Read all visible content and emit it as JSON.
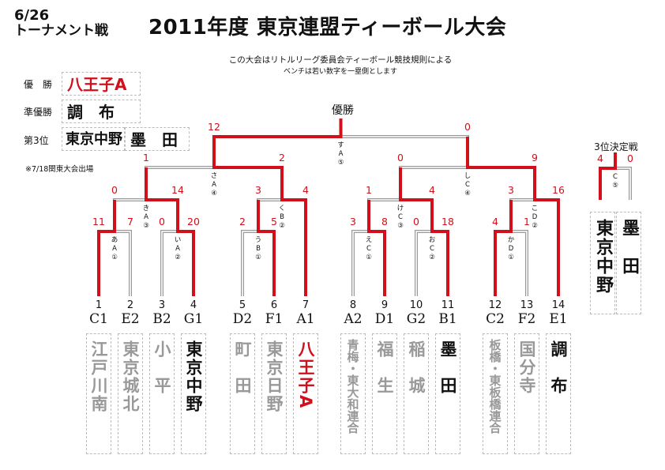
{
  "header": {
    "date": "6/26",
    "type": "トーナメント戦",
    "title": "2011年度 東京連盟ティーボール大会",
    "rule1": "この大会はリトルリーグ委員会ティーボール競技規則による",
    "rule2": "ベンチは若い数字を一塁側とします"
  },
  "results": {
    "champion_label": "優　勝",
    "champion": "八王子A",
    "runner_up_label": "準優勝",
    "runner_up": "調　布",
    "third_label": "第3位",
    "third": [
      "東京中野",
      "墨　田"
    ],
    "note": "※7/18関東大会出場"
  },
  "bracket": {
    "champion_title": "優勝",
    "third_title": "3位決定戦",
    "colors": {
      "win": "#d0101b",
      "lose": "#999999",
      "text_lose": "#999999"
    },
    "teams": [
      {
        "seed": "1",
        "code": "C1",
        "name": "江戸川南",
        "status": "lose"
      },
      {
        "seed": "2",
        "code": "E2",
        "name": "東京城北",
        "status": "lose"
      },
      {
        "seed": "3",
        "code": "B2",
        "name": "小　平",
        "status": "lose"
      },
      {
        "seed": "4",
        "code": "G1",
        "name": "東京中野",
        "status": "top"
      },
      {
        "seed": "5",
        "code": "D2",
        "name": "町　田",
        "status": "lose"
      },
      {
        "seed": "6",
        "code": "F1",
        "name": "東京日野",
        "status": "lose"
      },
      {
        "seed": "7",
        "code": "A1",
        "name": "八王子A",
        "status": "champion"
      },
      {
        "seed": "8",
        "code": "A2",
        "name": "青梅・東大和連合",
        "status": "lose"
      },
      {
        "seed": "9",
        "code": "D1",
        "name": "福　生",
        "status": "lose"
      },
      {
        "seed": "10",
        "code": "G2",
        "name": "稲　城",
        "status": "lose"
      },
      {
        "seed": "11",
        "code": "B1",
        "name": "墨　田",
        "status": "top"
      },
      {
        "seed": "12",
        "code": "C2",
        "name": "板橋・東板橋連合",
        "status": "lose"
      },
      {
        "seed": "13",
        "code": "F2",
        "name": "国分寺",
        "status": "lose"
      },
      {
        "seed": "14",
        "code": "E1",
        "name": "調　布",
        "status": "top"
      }
    ],
    "matches": [
      {
        "id": "a",
        "label": [
          "あ",
          "A",
          "①"
        ],
        "left_score": "11",
        "right_score": "7",
        "winner": "left"
      },
      {
        "id": "i",
        "label": [
          "い",
          "A",
          "②"
        ],
        "left_score": "0",
        "right_score": "20",
        "winner": "right"
      },
      {
        "id": "u",
        "label": [
          "う",
          "B",
          "①"
        ],
        "left_score": "2",
        "right_score": "5",
        "winner": "right"
      },
      {
        "id": "e",
        "label": [
          "え",
          "C",
          "①"
        ],
        "left_score": "3",
        "right_score": "8",
        "winner": "right"
      },
      {
        "id": "o",
        "label": [
          "お",
          "C",
          "②"
        ],
        "left_score": "0",
        "right_score": "18",
        "winner": "right"
      },
      {
        "id": "ka",
        "label": [
          "か",
          "D",
          "①"
        ],
        "left_score": "4",
        "right_score": "1",
        "winner": "left"
      },
      {
        "id": "ki",
        "label": [
          "き",
          "A",
          "③"
        ],
        "left_score": "0",
        "right_score": "14",
        "winner": "right"
      },
      {
        "id": "ku",
        "label": [
          "く",
          "B",
          "②"
        ],
        "left_score": "3",
        "right_score": "4",
        "winner": "right"
      },
      {
        "id": "ke",
        "label": [
          "け",
          "C",
          "③"
        ],
        "left_score": "1",
        "right_score": "4",
        "winner": "right"
      },
      {
        "id": "ko",
        "label": [
          "こ",
          "D",
          "②"
        ],
        "left_score": "3",
        "right_score": "16",
        "winner": "right"
      },
      {
        "id": "sa",
        "label": [
          "さ",
          "A",
          "④"
        ],
        "left_score": "1",
        "right_score": "2",
        "winner": "right"
      },
      {
        "id": "shi",
        "label": [
          "し",
          "C",
          "④"
        ],
        "left_score": "0",
        "right_score": "9",
        "winner": "right"
      },
      {
        "id": "su",
        "label": [
          "す",
          "A",
          "⑤"
        ],
        "left_score": "12",
        "right_score": "0",
        "winner": "left"
      },
      {
        "id": "third",
        "label": [
          "C",
          "⑤"
        ],
        "left_score": "4",
        "right_score": "0",
        "winner": "left"
      }
    ],
    "third_place_teams": [
      {
        "name": "東京中野",
        "status": "win"
      },
      {
        "name": "墨　田",
        "status": "lose"
      }
    ]
  }
}
